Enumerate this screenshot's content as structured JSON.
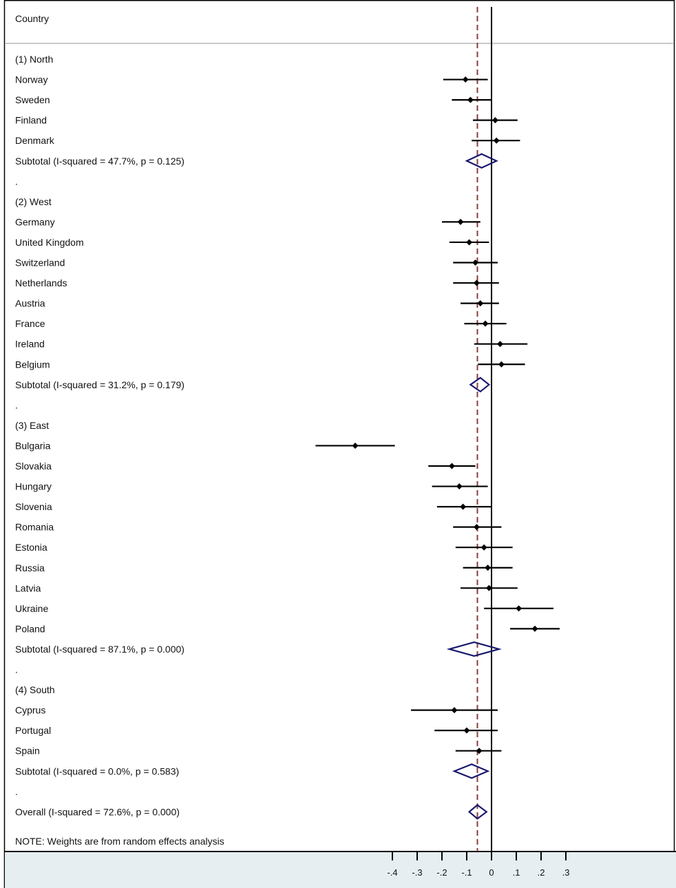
{
  "chart_data": {
    "type": "forest",
    "header": "Country",
    "note": "NOTE: Weights are from random effects analysis",
    "x_ticks": [
      -0.4,
      -0.3,
      -0.2,
      -0.1,
      0,
      0.1,
      0.2,
      0.3
    ],
    "x_tick_labels": [
      "-.4",
      "-.3",
      "-.2",
      "-.1",
      "0",
      ".1",
      ".2",
      ".3"
    ],
    "xlim": [
      -0.4,
      0.3
    ],
    "null_line": 0,
    "overall_effect": -0.057,
    "colors": {
      "diamond": "#1a1a6e",
      "reference_line": "#8b3a3a",
      "marker": "#000000",
      "axis_band": "#e6eef1"
    },
    "rows": [
      {
        "type": "group",
        "label": "(1) North"
      },
      {
        "type": "study",
        "label": "Norway",
        "est": -0.105,
        "lo": -0.195,
        "hi": -0.015
      },
      {
        "type": "study",
        "label": "Sweden",
        "est": -0.085,
        "lo": -0.16,
        "hi": 0.0
      },
      {
        "type": "study",
        "label": "Finland",
        "est": 0.015,
        "lo": -0.075,
        "hi": 0.105
      },
      {
        "type": "study",
        "label": "Denmark",
        "est": 0.02,
        "lo": -0.08,
        "hi": 0.115
      },
      {
        "type": "subtotal",
        "label": "Subtotal  (I-squared = 47.7%, p = 0.125)",
        "est": -0.04,
        "lo": -0.1,
        "hi": 0.02
      },
      {
        "type": "spacer",
        "label": "."
      },
      {
        "type": "group",
        "label": "(2) West"
      },
      {
        "type": "study",
        "label": "Germany",
        "est": -0.125,
        "lo": -0.2,
        "hi": -0.045
      },
      {
        "type": "study",
        "label": "United Kingdom",
        "est": -0.09,
        "lo": -0.17,
        "hi": -0.01
      },
      {
        "type": "study",
        "label": "Switzerland",
        "est": -0.065,
        "lo": -0.155,
        "hi": 0.025
      },
      {
        "type": "study",
        "label": "Netherlands",
        "est": -0.06,
        "lo": -0.155,
        "hi": 0.03
      },
      {
        "type": "study",
        "label": "Austria",
        "est": -0.045,
        "lo": -0.125,
        "hi": 0.03
      },
      {
        "type": "study",
        "label": "France",
        "est": -0.025,
        "lo": -0.11,
        "hi": 0.06
      },
      {
        "type": "study",
        "label": "Ireland",
        "est": 0.035,
        "lo": -0.07,
        "hi": 0.145
      },
      {
        "type": "study",
        "label": "Belgium",
        "est": 0.04,
        "lo": -0.055,
        "hi": 0.135
      },
      {
        "type": "subtotal",
        "label": "Subtotal  (I-squared = 31.2%, p = 0.179)",
        "est": -0.045,
        "lo": -0.085,
        "hi": -0.01
      },
      {
        "type": "spacer",
        "label": "."
      },
      {
        "type": "group",
        "label": "(3) East"
      },
      {
        "type": "study",
        "label": "Bulgaria",
        "est": -0.55,
        "lo": -0.71,
        "hi": -0.39
      },
      {
        "type": "study",
        "label": "Slovakia",
        "est": -0.16,
        "lo": -0.255,
        "hi": -0.065
      },
      {
        "type": "study",
        "label": "Hungary",
        "est": -0.13,
        "lo": -0.24,
        "hi": -0.015
      },
      {
        "type": "study",
        "label": "Slovenia",
        "est": -0.115,
        "lo": -0.22,
        "hi": 0.0
      },
      {
        "type": "study",
        "label": "Romania",
        "est": -0.06,
        "lo": -0.155,
        "hi": 0.04
      },
      {
        "type": "study",
        "label": "Estonia",
        "est": -0.03,
        "lo": -0.145,
        "hi": 0.085
      },
      {
        "type": "study",
        "label": "Russia",
        "est": -0.015,
        "lo": -0.115,
        "hi": 0.085
      },
      {
        "type": "study",
        "label": "Latvia",
        "est": -0.01,
        "lo": -0.125,
        "hi": 0.105
      },
      {
        "type": "study",
        "label": "Ukraine",
        "est": 0.11,
        "lo": -0.03,
        "hi": 0.25
      },
      {
        "type": "study",
        "label": "Poland",
        "est": 0.175,
        "lo": 0.075,
        "hi": 0.275
      },
      {
        "type": "subtotal",
        "label": "Subtotal  (I-squared = 87.1%, p = 0.000)",
        "est": -0.07,
        "lo": -0.17,
        "hi": 0.03
      },
      {
        "type": "spacer",
        "label": "."
      },
      {
        "type": "group",
        "label": "(4) South"
      },
      {
        "type": "study",
        "label": "Cyprus",
        "est": -0.15,
        "lo": -0.325,
        "hi": 0.025
      },
      {
        "type": "study",
        "label": "Portugal",
        "est": -0.1,
        "lo": -0.23,
        "hi": 0.025
      },
      {
        "type": "study",
        "label": "Spain",
        "est": -0.05,
        "lo": -0.145,
        "hi": 0.04
      },
      {
        "type": "subtotal",
        "label": "Subtotal  (I-squared = 0.0%, p = 0.583)",
        "est": -0.08,
        "lo": -0.15,
        "hi": -0.015
      },
      {
        "type": "spacer",
        "label": "."
      },
      {
        "type": "overall",
        "label": "Overall  (I-squared = 72.6%, p = 0.000)",
        "est": -0.057,
        "lo": -0.09,
        "hi": -0.02
      }
    ]
  }
}
